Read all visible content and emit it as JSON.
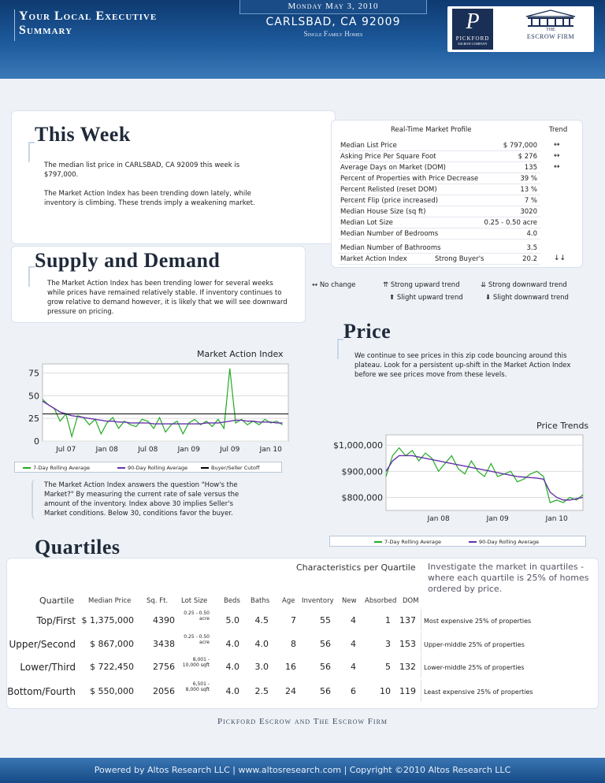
{
  "header": {
    "title_line1": "Your Local Executive",
    "title_line2": "Summary",
    "date": "Monday May 3, 2010",
    "city": "CARLSBAD, CA 92009",
    "property_type": "Single Family Homes",
    "logo_left": {
      "letter": "P",
      "name": "PICKFORD",
      "sub": "ESCROW COMPANY"
    },
    "logo_right": {
      "the": "THE",
      "name": "ESCROW FIRM"
    }
  },
  "this_week": {
    "title": "This Week",
    "p1": "The median list price in CARLSBAD, CA 92009 this week is $797,000.",
    "p2": "The Market Action Index has been trending down lately, while inventory is climbing. These trends imply a weakening market."
  },
  "market_profile": {
    "title": "Real-Time Market Profile",
    "trend_label": "Trend",
    "rows": [
      {
        "label": "Median List Price",
        "mid": "",
        "value": "$ 797,000",
        "trend": "↔"
      },
      {
        "label": "Asking Price Per Square Foot",
        "mid": "",
        "value": "$ 276",
        "trend": "↔"
      },
      {
        "label": "Average Days on Market (DOM)",
        "mid": "",
        "value": "135",
        "trend": "↔"
      },
      {
        "label": "Percent of Properties with Price Decrease",
        "mid": "",
        "value": "39 %",
        "trend": ""
      },
      {
        "label": "Percent Relisted (reset DOM)",
        "mid": "",
        "value": "13 %",
        "trend": ""
      },
      {
        "label": "Percent Flip (price increased)",
        "mid": "",
        "value": "7 %",
        "trend": ""
      },
      {
        "label": "Median House Size (sq ft)",
        "mid": "",
        "value": "3020",
        "trend": ""
      },
      {
        "label": "Median Lot Size",
        "mid": "",
        "value": "0.25 - 0.50 acre",
        "trend": ""
      },
      {
        "label": "Median Number of Bedrooms",
        "mid": "",
        "value": "4.0",
        "trend": ""
      },
      {
        "label": "Median Number of Bathrooms",
        "mid": "",
        "value": "3.5",
        "trend": ""
      },
      {
        "label": "Market Action Index",
        "mid": "Strong Buyer's",
        "value": "20.2",
        "trend": "↓↓"
      }
    ],
    "legend": {
      "no_change": "No change",
      "strong_up": "Strong upward trend",
      "strong_down": "Strong downward trend",
      "slight_up": "Slight upward trend",
      "slight_down": "Slight downward trend"
    }
  },
  "supply_demand": {
    "title": "Supply and Demand",
    "text": "The Market Action Index has been trending lower for several weeks while prices have remained relatively stable. If inventory continues to grow relative to demand however, it is likely that we will see downward pressure on pricing.",
    "mai_note": "The Market Action Index answers the question \"How's the Market?\" By measuring the current rate of sale versus the amount of the inventory.  Index above 30 implies Seller's Market conditions. Below 30, conditions favor the buyer."
  },
  "price": {
    "title": "Price",
    "text": "We continue to see prices in this zip code bouncing around this plateau. Look for a persistent up-shift in the Market Action Index before we see prices move from these levels."
  },
  "chart_data": [
    {
      "type": "line",
      "title": "Market Action Index",
      "x_ticks": [
        "Jul 07",
        "Jan 08",
        "Jul 08",
        "Jan 09",
        "Jul 09",
        "Jan 10"
      ],
      "y_ticks": [
        "0",
        "25",
        "50",
        "75"
      ],
      "ylim": [
        0,
        85
      ],
      "xlim": [
        0,
        42
      ],
      "cutoff": 30,
      "series": [
        {
          "name": "7-Day Rolling Average",
          "color": "#22aa22",
          "x": [
            0,
            1,
            2,
            3,
            4,
            5,
            6,
            7,
            8,
            9,
            10,
            11,
            12,
            13,
            14,
            15,
            16,
            17,
            18,
            19,
            20,
            21,
            22,
            23,
            24,
            25,
            26,
            27,
            28,
            29,
            30,
            31,
            32,
            33,
            34,
            35,
            36,
            37,
            38,
            39,
            40,
            41
          ],
          "values": [
            46,
            40,
            36,
            22,
            30,
            5,
            28,
            26,
            18,
            24,
            8,
            20,
            26,
            14,
            22,
            18,
            16,
            24,
            22,
            14,
            26,
            10,
            18,
            22,
            8,
            20,
            24,
            18,
            22,
            16,
            24,
            14,
            80,
            20,
            24,
            18,
            22,
            18,
            24,
            20,
            22,
            18
          ]
        },
        {
          "name": "90-Day Rolling Average",
          "color": "#6633aa",
          "x": [
            0,
            1,
            2,
            3,
            4,
            5,
            6,
            7,
            8,
            9,
            10,
            11,
            12,
            13,
            14,
            15,
            16,
            17,
            18,
            19,
            20,
            21,
            22,
            23,
            24,
            25,
            26,
            27,
            28,
            29,
            30,
            31,
            32,
            33,
            34,
            35,
            36,
            37,
            38,
            39,
            40,
            41
          ],
          "values": [
            44,
            40,
            36,
            32,
            30,
            28,
            27,
            26,
            25,
            24,
            23,
            22,
            22,
            21,
            21,
            20,
            20,
            20,
            20,
            19,
            19,
            19,
            19,
            19,
            19,
            19,
            19,
            19,
            20,
            20,
            20,
            21,
            22,
            23,
            23,
            22,
            22,
            21,
            21,
            21,
            20,
            20
          ]
        },
        {
          "name": "Buyer/Seller Cutoff",
          "color": "#000000"
        }
      ]
    },
    {
      "type": "line",
      "title": "Price Trends",
      "x_ticks": [
        "Jan 08",
        "Jan 09",
        "Jan 10"
      ],
      "y_ticks": [
        "$800,000",
        "$900,000",
        "$1,000,000"
      ],
      "ylim": [
        750000,
        1040000
      ],
      "xlim": [
        0,
        30
      ],
      "series": [
        {
          "name": "7-Day Rolling Average",
          "color": "#22aa22",
          "x": [
            0,
            1,
            2,
            3,
            4,
            5,
            6,
            7,
            8,
            9,
            10,
            11,
            12,
            13,
            14,
            15,
            16,
            17,
            18,
            19,
            20,
            21,
            22,
            23,
            24,
            25,
            26,
            27,
            28,
            29,
            30
          ],
          "values": [
            880000,
            960000,
            990000,
            960000,
            980000,
            940000,
            970000,
            950000,
            900000,
            930000,
            960000,
            910000,
            890000,
            940000,
            900000,
            880000,
            930000,
            880000,
            890000,
            900000,
            860000,
            870000,
            890000,
            900000,
            880000,
            780000,
            790000,
            780000,
            800000,
            790000,
            810000
          ]
        },
        {
          "name": "90-Day Rolling Average",
          "color": "#6633aa",
          "x": [
            0,
            1,
            2,
            3,
            4,
            5,
            6,
            7,
            8,
            9,
            10,
            11,
            12,
            13,
            14,
            15,
            16,
            17,
            18,
            19,
            20,
            21,
            22,
            23,
            24,
            25,
            26,
            27,
            28,
            29,
            30
          ],
          "values": [
            900000,
            940000,
            960000,
            960000,
            960000,
            955000,
            950000,
            945000,
            940000,
            935000,
            930000,
            925000,
            920000,
            915000,
            910000,
            905000,
            900000,
            895000,
            890000,
            885000,
            880000,
            878000,
            876000,
            874000,
            870000,
            820000,
            800000,
            790000,
            790000,
            795000,
            800000
          ]
        }
      ]
    }
  ],
  "quartiles": {
    "title": "Quartiles",
    "subtitle": "Characteristics per Quartile",
    "intro": "Investigate the market in quartiles - where each quartile is 25% of homes ordered by price.",
    "headers": {
      "quartile": "Quartile",
      "price": "Median Price",
      "sqft": "Sq. Ft.",
      "lot": "Lot Size",
      "beds": "Beds",
      "baths": "Baths",
      "age": "Age",
      "inventory": "Inventory",
      "new": "New",
      "absorbed": "Absorbed",
      "dom": "DOM"
    },
    "rows": [
      {
        "name": "Top/First",
        "price": "$ 1,375,000",
        "sqft": "4390",
        "lot1": "0.25 - 0.50",
        "lot2": "acre",
        "beds": "5.0",
        "baths": "4.5",
        "age": "7",
        "inventory": "55",
        "new": "4",
        "absorbed": "1",
        "dom": "137",
        "desc": "Most expensive 25% of properties"
      },
      {
        "name": "Upper/Second",
        "price": "$ 867,000",
        "sqft": "3438",
        "lot1": "0.25 - 0.50",
        "lot2": "acre",
        "beds": "4.0",
        "baths": "4.0",
        "age": "8",
        "inventory": "56",
        "new": "4",
        "absorbed": "3",
        "dom": "153",
        "desc": "Upper-middle 25% of properties"
      },
      {
        "name": "Lower/Third",
        "price": "$ 722,450",
        "sqft": "2756",
        "lot1": "8,001 -",
        "lot2": "10,000 sqft",
        "beds": "4.0",
        "baths": "3.0",
        "age": "16",
        "inventory": "56",
        "new": "4",
        "absorbed": "5",
        "dom": "132",
        "desc": "Lower-middle 25% of properties"
      },
      {
        "name": "Bottom/Fourth",
        "price": "$ 550,000",
        "sqft": "2056",
        "lot1": "6,501 -",
        "lot2": "8,000 sqft",
        "beds": "4.0",
        "baths": "2.5",
        "age": "24",
        "inventory": "56",
        "new": "6",
        "absorbed": "10",
        "dom": "119",
        "desc": "Least expensive 25% of properties"
      }
    ]
  },
  "footer": {
    "firms": "Pickford Escrow and The Escrow Firm",
    "powered": "Powered by Altos Research LLC | www.altosresearch.com | Copyright ©2010 Altos Research LLC"
  }
}
